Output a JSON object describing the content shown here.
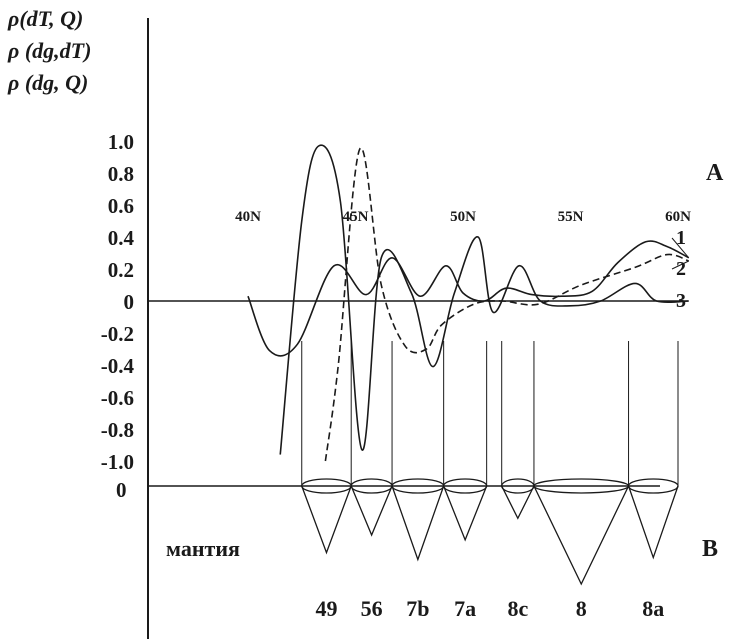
{
  "chart_data": {
    "type": "line",
    "y_axis_titles": [
      "ρ(dT, Q)",
      "ρ (dg,dT)",
      "ρ (dg, Q)"
    ],
    "y_ticks": [
      "1.0",
      "0.8",
      "0.6",
      "0.4",
      "0.2",
      "0",
      "-0.2",
      "-0.4",
      "-0.6",
      "-0.8",
      "-1.0"
    ],
    "ylim": [
      -1.0,
      1.0
    ],
    "xlim": [
      40,
      61
    ],
    "x_ticks": [
      {
        "value": 40,
        "label": "40N"
      },
      {
        "value": 45,
        "label": "45N"
      },
      {
        "value": 50,
        "label": "50N"
      },
      {
        "value": 55,
        "label": "55N"
      },
      {
        "value": 60,
        "label": "60N"
      }
    ],
    "panel_a_label": "A",
    "panel_b_label": "B",
    "panel_b_zero": "0",
    "mantle_label": "мантия",
    "series": [
      {
        "name": "1",
        "style": "solid",
        "points": [
          [
            40.0,
            0.03
          ],
          [
            41.0,
            -0.31
          ],
          [
            42.3,
            -0.27
          ],
          [
            44.0,
            0.22
          ],
          [
            45.5,
            0.04
          ],
          [
            46.7,
            0.27
          ],
          [
            48.0,
            0.03
          ],
          [
            49.2,
            0.22
          ],
          [
            50.0,
            0.05
          ],
          [
            51.0,
            0.0
          ],
          [
            52.0,
            0.08
          ],
          [
            53.2,
            0.04
          ],
          [
            54.6,
            0.03
          ],
          [
            56.0,
            0.06
          ],
          [
            57.2,
            0.24
          ],
          [
            58.5,
            0.37
          ],
          [
            59.5,
            0.34
          ],
          [
            60.5,
            0.27
          ]
        ]
      },
      {
        "name": "2",
        "style": "dashed",
        "points": [
          [
            43.6,
            -1.0
          ],
          [
            44.2,
            -0.4
          ],
          [
            45.2,
            0.95
          ],
          [
            46.2,
            0.1
          ],
          [
            47.3,
            -0.28
          ],
          [
            48.3,
            -0.3
          ],
          [
            49.0,
            -0.15
          ],
          [
            50.5,
            -0.02
          ],
          [
            51.8,
            0.0
          ],
          [
            53.5,
            -0.02
          ],
          [
            55.5,
            0.1
          ],
          [
            58.0,
            0.21
          ],
          [
            59.5,
            0.29
          ],
          [
            60.5,
            0.25
          ]
        ]
      },
      {
        "name": "3",
        "style": "solid",
        "points": [
          [
            41.5,
            -0.96
          ],
          [
            42.5,
            0.5
          ],
          [
            43.3,
            0.97
          ],
          [
            44.3,
            0.62
          ],
          [
            45.3,
            -0.93
          ],
          [
            46.2,
            0.27
          ],
          [
            47.6,
            0.05
          ],
          [
            48.6,
            -0.41
          ],
          [
            49.6,
            0.05
          ],
          [
            50.7,
            0.4
          ],
          [
            51.4,
            -0.07
          ],
          [
            52.6,
            0.22
          ],
          [
            53.6,
            0.0
          ],
          [
            55.0,
            -0.03
          ],
          [
            56.4,
            0.0
          ],
          [
            58.0,
            0.11
          ],
          [
            59.0,
            0.0
          ],
          [
            60.5,
            0.0
          ]
        ]
      }
    ],
    "columns": [
      {
        "label": "49",
        "x_start": 42.5,
        "x_end": 44.8,
        "depth": 0.68
      },
      {
        "label": "56",
        "x_start": 44.8,
        "x_end": 46.7,
        "depth": 0.5
      },
      {
        "label": "7b",
        "x_start": 46.7,
        "x_end": 49.1,
        "depth": 0.75
      },
      {
        "label": "7a",
        "x_start": 49.1,
        "x_end": 51.1,
        "depth": 0.55
      },
      {
        "label": "8c",
        "x_start": 51.8,
        "x_end": 53.3,
        "depth": 0.33
      },
      {
        "label": "8",
        "x_start": 53.3,
        "x_end": 57.7,
        "depth": 1.0
      },
      {
        "label": "8a",
        "x_start": 57.7,
        "x_end": 60.0,
        "depth": 0.73
      }
    ]
  }
}
